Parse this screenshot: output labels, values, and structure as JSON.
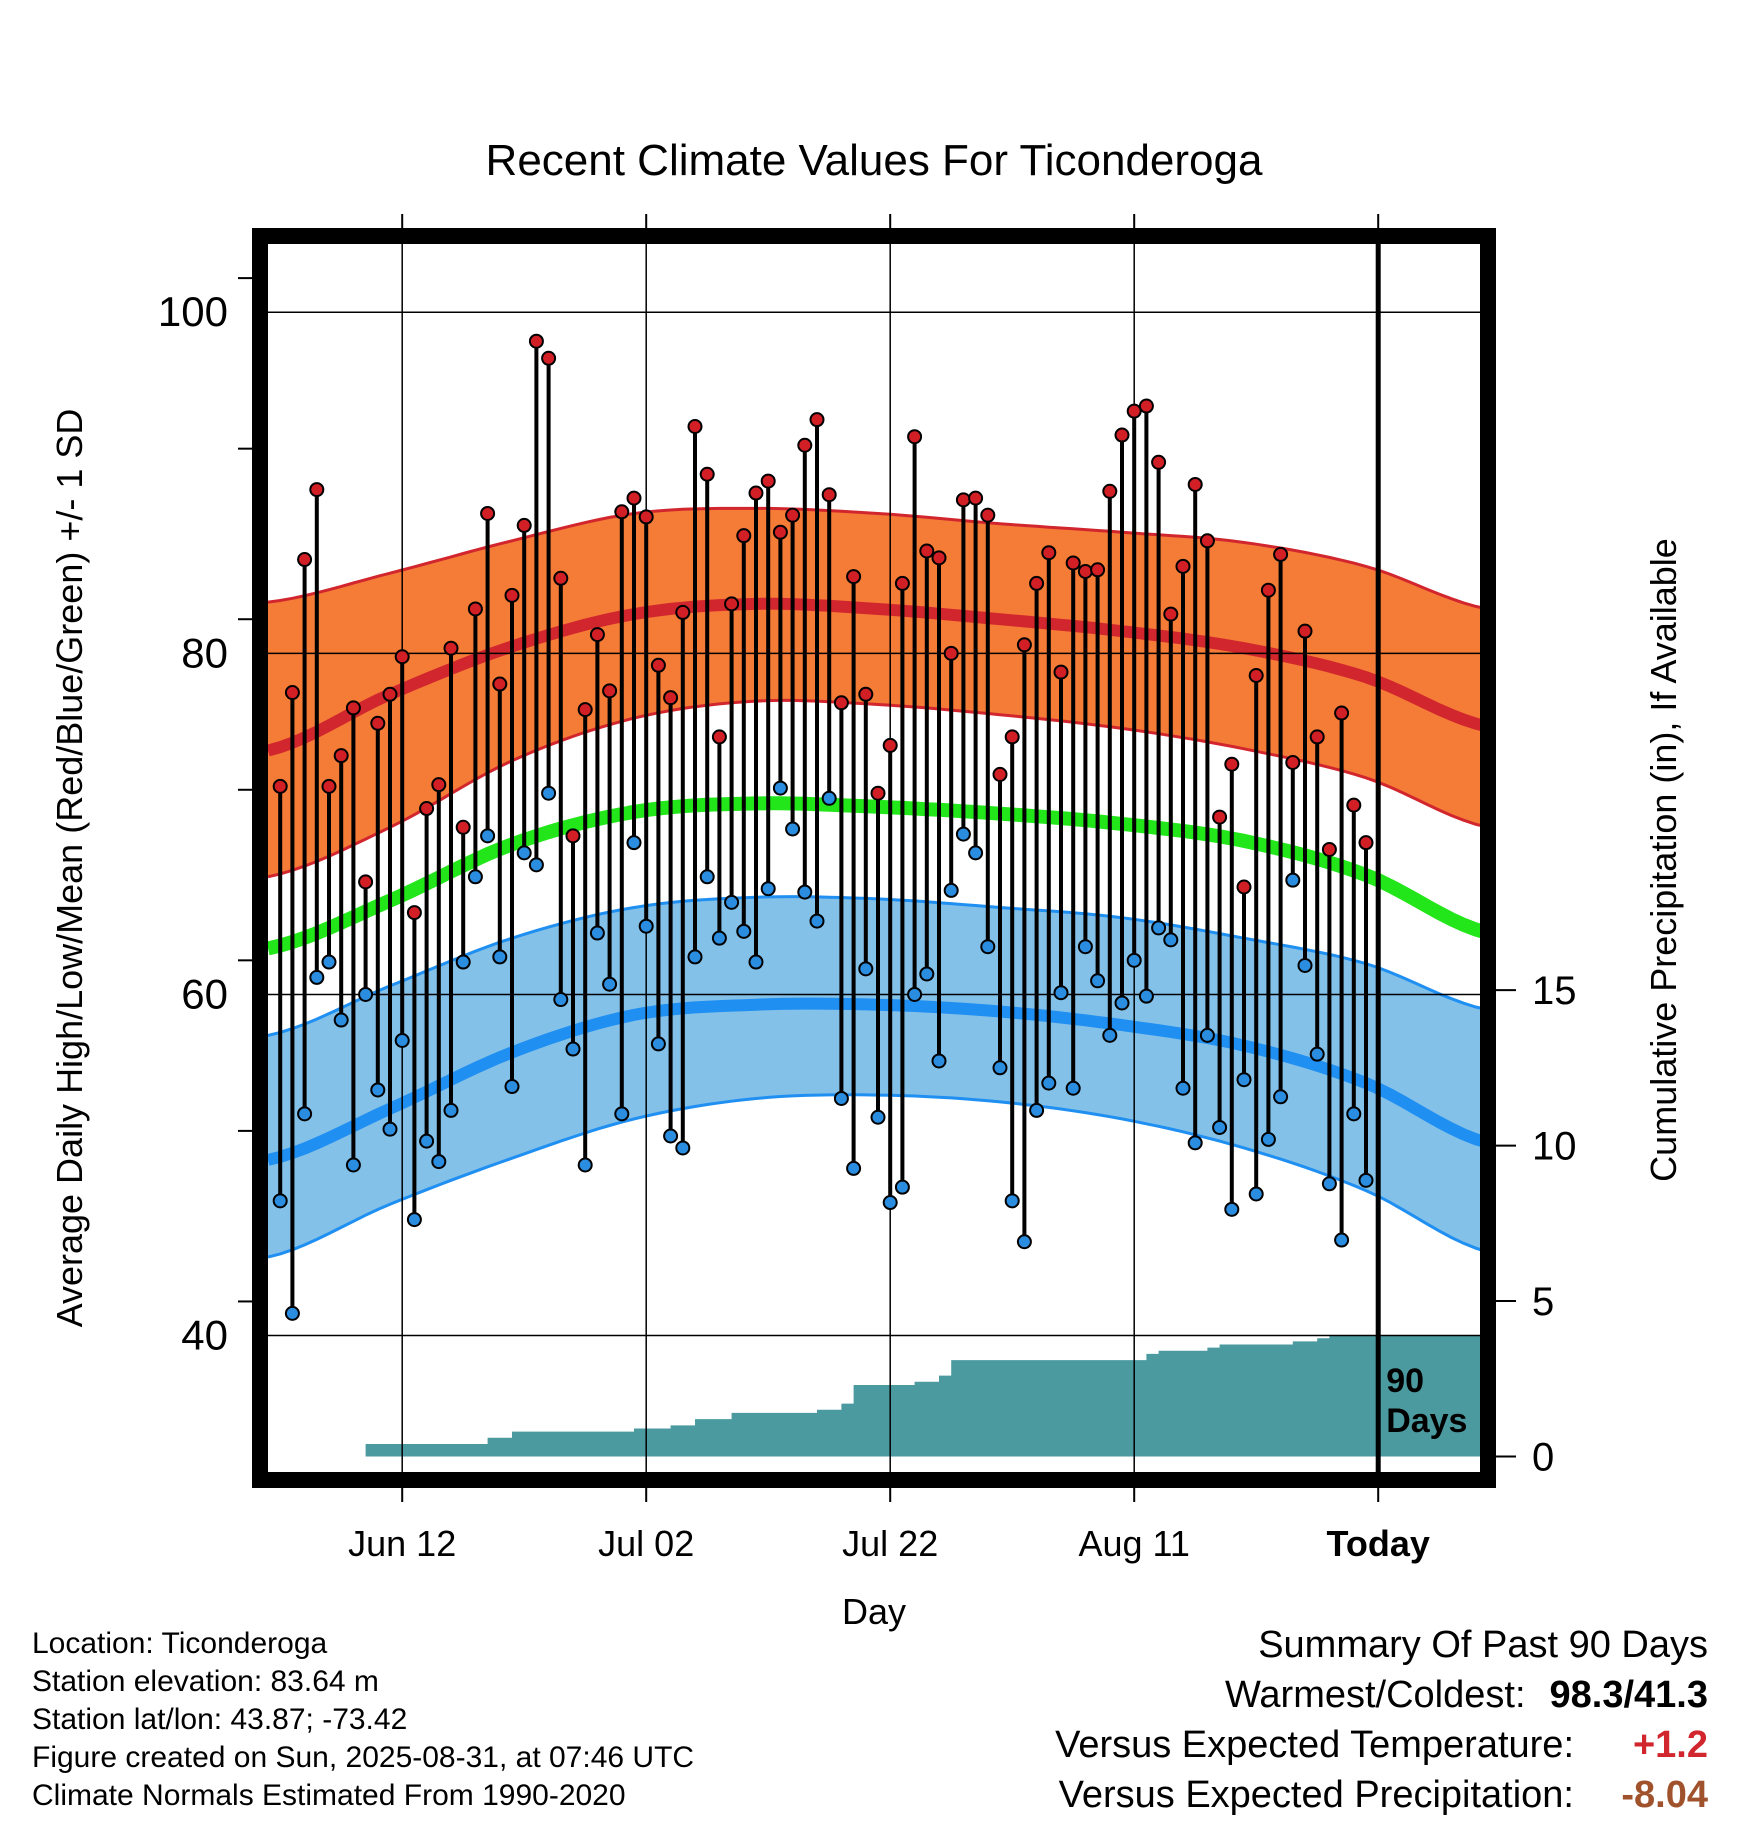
{
  "chart_data": {
    "type": "line",
    "title": "Recent Climate Values For Ticonderoga",
    "xlabel": "Day",
    "ylabel": "Average Daily High/Low/Mean (Red/Blue/Green) +/- 1 SD",
    "y2label": "Cumulative Precipitation (in), If Available",
    "x_tick_labels": [
      "Jun 12",
      "Jul 02",
      "Jul 22",
      "Aug 11",
      "Today"
    ],
    "x_tick_days": [
      11,
      31,
      51,
      71,
      91
    ],
    "x_range_days": [
      0,
      101
    ],
    "ylim": [
      32,
      104
    ],
    "yticks": [
      40,
      60,
      80,
      100
    ],
    "y2lim": [
      -0.5,
      39
    ],
    "y2ticks": [
      0,
      5,
      10,
      15
    ],
    "today_label": "90\nDays",
    "colors": {
      "high_band": "#f47c36",
      "high_line": "#d2262e",
      "mean_line": "#22e61a",
      "low_band": "#84c1e8",
      "low_line": "#1f8ff2",
      "high_marker": "#d21f26",
      "low_marker": "#2a8de0",
      "precip": "#4a9aa0"
    },
    "normals": {
      "days": [
        0,
        10,
        20,
        30,
        40,
        50,
        60,
        70,
        80,
        90,
        100
      ],
      "high_mean": [
        74.3,
        77.6,
        80.4,
        82.3,
        82.9,
        82.6,
        82.0,
        81.3,
        80.3,
        78.6,
        75.7
      ],
      "high_sd_upper": [
        83.0,
        84.7,
        86.6,
        88.2,
        88.5,
        88.2,
        87.6,
        87.1,
        86.5,
        85.1,
        82.6
      ],
      "high_sd_lower": [
        66.9,
        69.8,
        73.7,
        76.2,
        77.2,
        77.0,
        76.4,
        75.6,
        74.4,
        72.7,
        69.8
      ],
      "mean_line": [
        62.7,
        65.5,
        68.8,
        70.7,
        71.2,
        71.0,
        70.6,
        70.0,
        69.0,
        67.0,
        63.6
      ],
      "low_mean": [
        50.3,
        53.3,
        56.6,
        58.8,
        59.4,
        59.4,
        59.0,
        58.2,
        57.0,
        54.8,
        51.3
      ],
      "low_sd_upper": [
        57.6,
        60.5,
        63.3,
        65.1,
        65.7,
        65.6,
        65.1,
        64.5,
        63.3,
        61.8,
        59.1
      ],
      "low_sd_lower": [
        44.6,
        47.7,
        50.4,
        52.7,
        53.9,
        54.1,
        53.7,
        52.7,
        51.0,
        48.5,
        44.9
      ]
    },
    "daily": {
      "high": [
        72.2,
        77.7,
        85.5,
        89.6,
        72.2,
        74.0,
        76.8,
        66.6,
        75.9,
        77.6,
        79.8,
        64.8,
        70.9,
        72.3,
        80.3,
        69.8,
        82.6,
        88.2,
        78.2,
        83.4,
        87.5,
        98.3,
        97.3,
        84.4,
        69.3,
        76.7,
        81.1,
        77.8,
        88.3,
        89.1,
        88.0,
        79.3,
        77.4,
        82.4,
        93.3,
        90.5,
        75.1,
        82.9,
        86.9,
        89.4,
        90.1,
        87.1,
        88.1,
        92.2,
        93.7,
        89.3,
        77.1,
        84.5,
        77.6,
        71.8,
        74.6,
        84.1,
        92.7,
        86.0,
        85.6,
        80.0,
        89.0,
        89.1,
        88.1,
        72.9,
        75.1,
        80.5,
        84.1,
        85.9,
        78.9,
        85.3,
        84.8,
        84.9,
        89.5,
        92.8,
        94.2,
        94.5,
        91.2,
        82.3,
        85.1,
        89.9,
        86.6,
        70.4,
        73.5,
        66.3,
        78.7,
        83.7,
        85.8,
        73.6,
        81.3,
        75.1,
        68.5,
        76.5,
        71.1,
        68.9
      ],
      "low": [
        47.9,
        41.3,
        53.0,
        61.0,
        61.9,
        58.5,
        50.0,
        60.0,
        54.4,
        52.1,
        57.3,
        46.8,
        51.4,
        50.2,
        53.2,
        61.9,
        66.9,
        69.3,
        62.2,
        54.6,
        68.3,
        67.6,
        71.8,
        59.7,
        56.8,
        50.0,
        63.6,
        60.6,
        53.0,
        68.9,
        64.0,
        57.1,
        51.7,
        51.0,
        62.2,
        66.9,
        63.3,
        65.4,
        63.7,
        61.9,
        66.2,
        72.1,
        69.7,
        66.0,
        64.3,
        71.5,
        53.9,
        49.8,
        61.5,
        52.8,
        47.8,
        48.7,
        60.0,
        61.2,
        56.1,
        66.1,
        69.4,
        68.3,
        62.8,
        55.7,
        47.9,
        45.5,
        53.2,
        54.8,
        60.1,
        54.5,
        62.8,
        60.8,
        57.6,
        59.5,
        62.0,
        59.9,
        63.9,
        63.2,
        54.5,
        51.3,
        57.6,
        52.2,
        47.4,
        55.0,
        48.3,
        51.5,
        54.0,
        66.7,
        61.7,
        56.5,
        48.9,
        45.6,
        53.0,
        49.1
      ]
    },
    "precip_cumulative": {
      "days": [
        0,
        7,
        8,
        16,
        18,
        20,
        30,
        33,
        35,
        38,
        45,
        47,
        48,
        53,
        55,
        56,
        71,
        72,
        73,
        75,
        77,
        78,
        80,
        82,
        84,
        86,
        87,
        101
      ],
      "values": [
        0,
        0,
        0.4,
        0.4,
        0.6,
        0.8,
        0.9,
        1.0,
        1.2,
        1.4,
        1.5,
        1.7,
        2.3,
        2.4,
        2.6,
        3.1,
        3.1,
        3.3,
        3.4,
        3.4,
        3.5,
        3.6,
        3.6,
        3.6,
        3.7,
        3.8,
        3.9,
        3.9
      ]
    }
  },
  "info": {
    "location": "Location: Ticonderoga",
    "elevation": "Station elevation: 83.64 m",
    "latlon": "Station lat/lon: 43.87; -73.42",
    "created": "Figure created on Sun, 2025-08-31, at 07:46 UTC",
    "normals": "Climate Normals Estimated From 1990-2020"
  },
  "summary": {
    "title": "Summary Of Past 90 Days",
    "warmest_coldest_label": "Warmest/Coldest:",
    "warmest_coldest_value": "98.3/41.3",
    "temp_label": "Versus Expected Temperature:",
    "temp_value": "+1.2",
    "temp_color": "#d2262e",
    "precip_label": "Versus Expected Precipitation:",
    "precip_value": "-8.04",
    "precip_color": "#a0522d"
  }
}
